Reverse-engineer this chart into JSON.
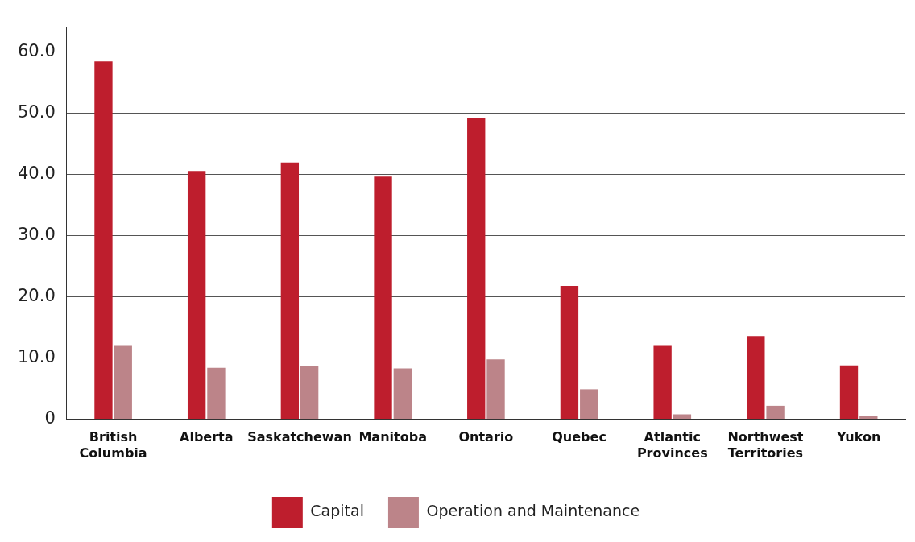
{
  "chart_data": {
    "type": "bar",
    "categories": [
      "British Columbia",
      "Alberta",
      "Saskatchewan",
      "Manitoba",
      "Ontario",
      "Quebec",
      "Atlantic Provinces",
      "Northwest Territories",
      "Yukon"
    ],
    "series": [
      {
        "name": "Capital",
        "color": "#be1e2d",
        "values": [
          58.5,
          40.6,
          42.0,
          39.7,
          49.2,
          21.8,
          12.0,
          13.6,
          8.8
        ]
      },
      {
        "name": "Operation and Maintenance",
        "color": "#bc8489",
        "values": [
          12.0,
          8.4,
          8.7,
          8.3,
          9.8,
          4.9,
          0.8,
          2.2,
          0.5
        ]
      }
    ],
    "ylim": [
      0,
      64
    ],
    "yticks": [
      0,
      {
        "value": 10,
        "label": "10.0"
      },
      {
        "value": 20,
        "label": "20.0"
      },
      {
        "value": 30,
        "label": "30.0"
      },
      {
        "value": 40,
        "label": "40.0"
      },
      {
        "value": 50,
        "label": "50.0"
      },
      {
        "value": 60,
        "label": "60.0"
      }
    ],
    "grid": "y",
    "legend": "bottom"
  }
}
